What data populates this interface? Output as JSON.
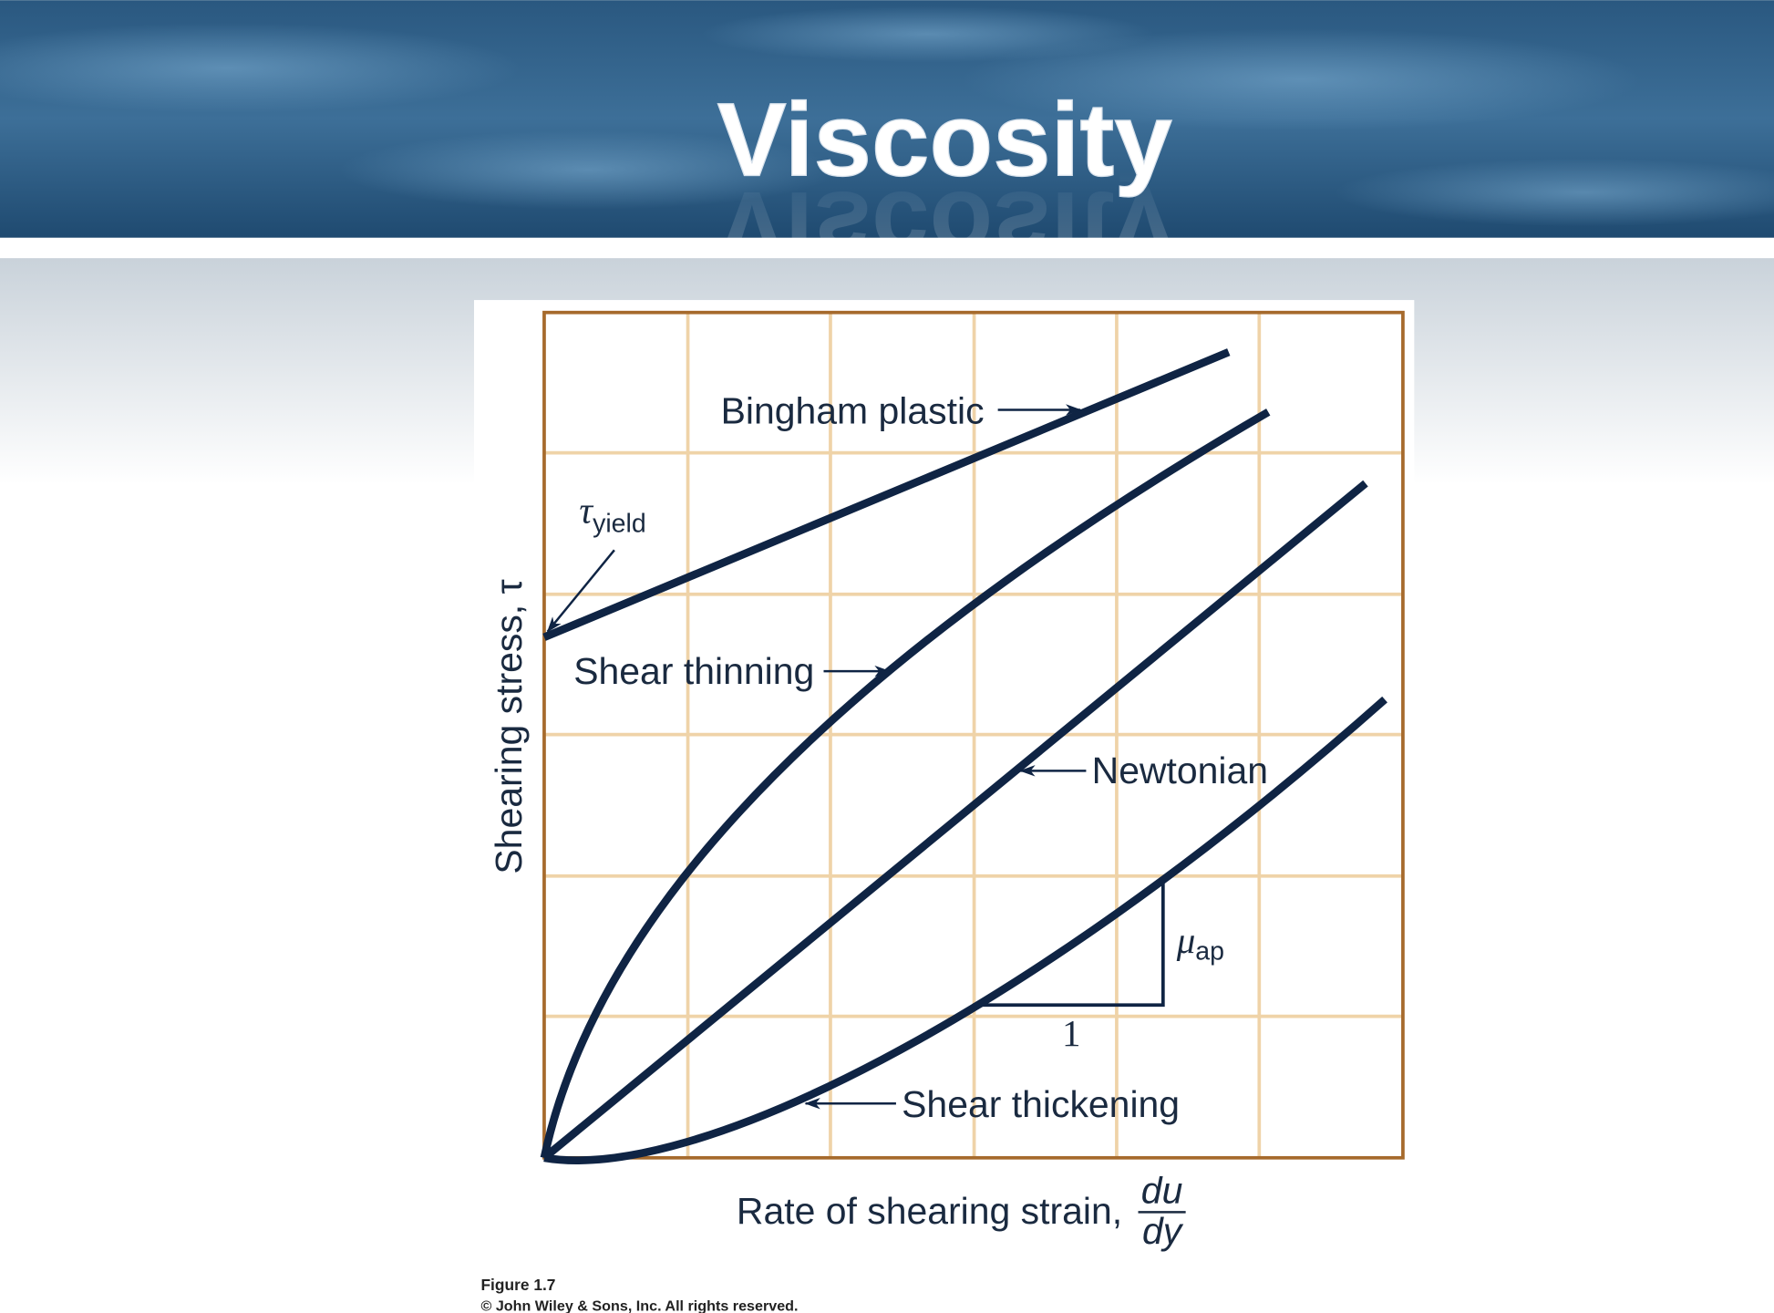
{
  "header": {
    "title": "Viscosity"
  },
  "figure": {
    "labels": {
      "bingham": "Bingham plastic",
      "tau_symbol": "τ",
      "tau_subscript": "yield",
      "shear_thinning": "Shear thinning",
      "newtonian": "Newtonian",
      "mu_symbol": "μ",
      "mu_subscript": "ap",
      "slope_run": "1",
      "shear_thickening": "Shear thickening"
    },
    "y_axis_label": "Shearing stress, τ",
    "x_axis_label": "Rate of shearing strain,",
    "x_axis_numerator": "du",
    "x_axis_denominator": "dy"
  },
  "caption": {
    "figure": "Figure 1.7",
    "copyright": "© John Wiley & Sons, Inc. All rights reserved."
  }
}
